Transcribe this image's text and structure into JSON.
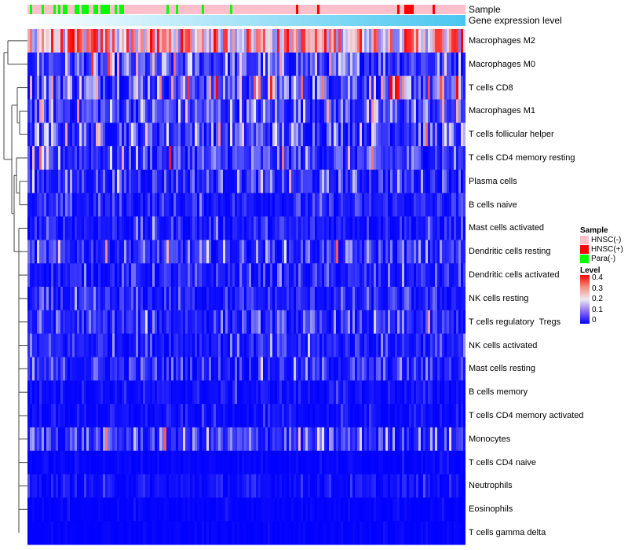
{
  "chart_data": {
    "type": "heatmap",
    "annotations": [
      {
        "name": "Sample",
        "type": "categorical"
      },
      {
        "name": "Gene expression level",
        "type": "continuous",
        "colors": [
          "#ffffff",
          "#48c6f0"
        ]
      }
    ],
    "rows": [
      {
        "label": "Macrophages M2",
        "mean": 0.25
      },
      {
        "label": "Macrophages M0",
        "mean": 0.08
      },
      {
        "label": "T cells CD8",
        "mean": 0.12
      },
      {
        "label": "Macrophages M1",
        "mean": 0.08
      },
      {
        "label": "T cells follicular helper",
        "mean": 0.08
      },
      {
        "label": "T cells CD4 memory resting",
        "mean": 0.06
      },
      {
        "label": "Plasma cells",
        "mean": 0.05
      },
      {
        "label": "B cells naive",
        "mean": 0.03
      },
      {
        "label": "Mast cells activated",
        "mean": 0.03
      },
      {
        "label": "Dendritic cells resting",
        "mean": 0.05
      },
      {
        "label": "Dendritic cells activated",
        "mean": 0.03
      },
      {
        "label": "NK cells resting",
        "mean": 0.03
      },
      {
        "label": "T cells regulatory  Tregs",
        "mean": 0.04
      },
      {
        "label": "NK cells activated",
        "mean": 0.035
      },
      {
        "label": "Mast cells resting",
        "mean": 0.04
      },
      {
        "label": "B cells memory",
        "mean": 0.015
      },
      {
        "label": "T cells CD4 memory activated",
        "mean": 0.012
      },
      {
        "label": "Monocytes",
        "mean": 0.06
      },
      {
        "label": "T cells CD4 naive",
        "mean": 0.006
      },
      {
        "label": "Neutrophils",
        "mean": 0.015
      },
      {
        "label": "Eosinophils",
        "mean": 0.004
      },
      {
        "label": "T cells gamma delta",
        "mean": 0.004
      }
    ],
    "color_scale": {
      "min": 0,
      "max": 0.4,
      "colors": [
        "#0000ff",
        "#eeeaf2",
        "#ff0000"
      ]
    },
    "legend": {
      "placement": "right",
      "sample_title": "Sample",
      "sample_items": [
        {
          "label": "HNSC(-)",
          "color": "#ffc0cb"
        },
        {
          "label": "HNSC(+)",
          "color": "#ff0000"
        },
        {
          "label": "Para(-)",
          "color": "#00ff00"
        }
      ],
      "level_title": "Level",
      "level_ticks": [
        "0.4",
        "0.3",
        "0.2",
        "0.1",
        "0"
      ]
    }
  }
}
